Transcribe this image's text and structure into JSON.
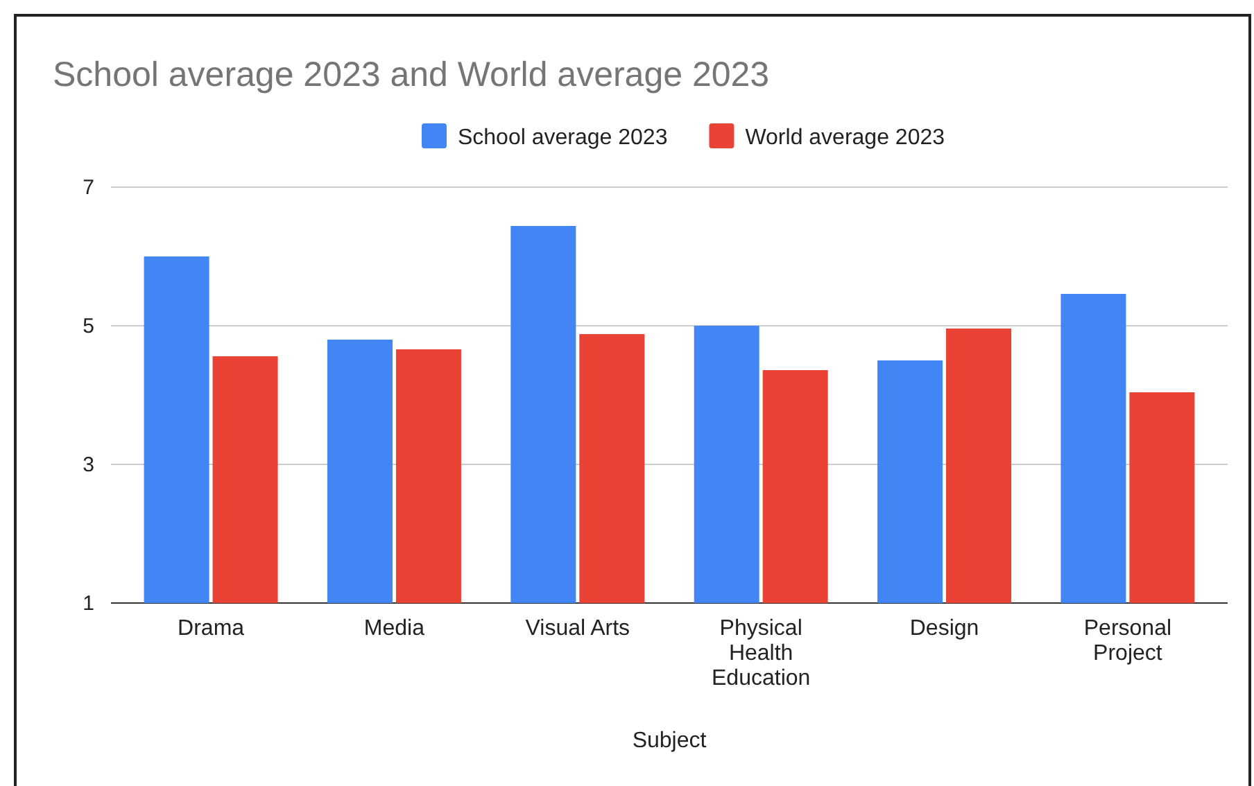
{
  "chart_data": {
    "type": "bar",
    "title": "School average 2023 and World average 2023",
    "xlabel": "Subject",
    "categories": [
      "Drama",
      "Media",
      "Visual Arts",
      "Physical Health Education",
      "Design",
      "Personal Project"
    ],
    "series": [
      {
        "name": "School average 2023",
        "color": "#4285f4",
        "values": [
          6.0,
          4.8,
          6.44,
          5.0,
          4.5,
          5.46
        ]
      },
      {
        "name": "World average 2023",
        "color": "#ea4335",
        "values": [
          4.56,
          4.66,
          4.88,
          4.36,
          4.96,
          4.04
        ]
      }
    ],
    "ylim": [
      1,
      7
    ],
    "yticks": [
      1,
      3,
      5,
      7
    ],
    "grid": "y",
    "legend": "top"
  }
}
